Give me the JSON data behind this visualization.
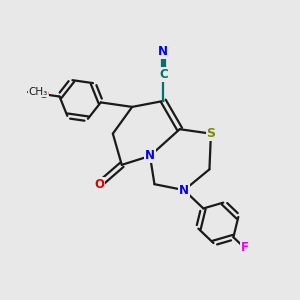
{
  "bg_color": "#e8e8e8",
  "bond_color": "#1a1a1a",
  "atom_colors": {
    "N": "#0000ee",
    "O": "#dd0000",
    "S": "#888800",
    "F": "#ee00ee",
    "C_cyan": "#007070",
    "C_black": "#1a1a1a"
  },
  "figsize": [
    3.0,
    3.0
  ],
  "dpi": 100,
  "lw": 1.6,
  "fs": 8.5
}
